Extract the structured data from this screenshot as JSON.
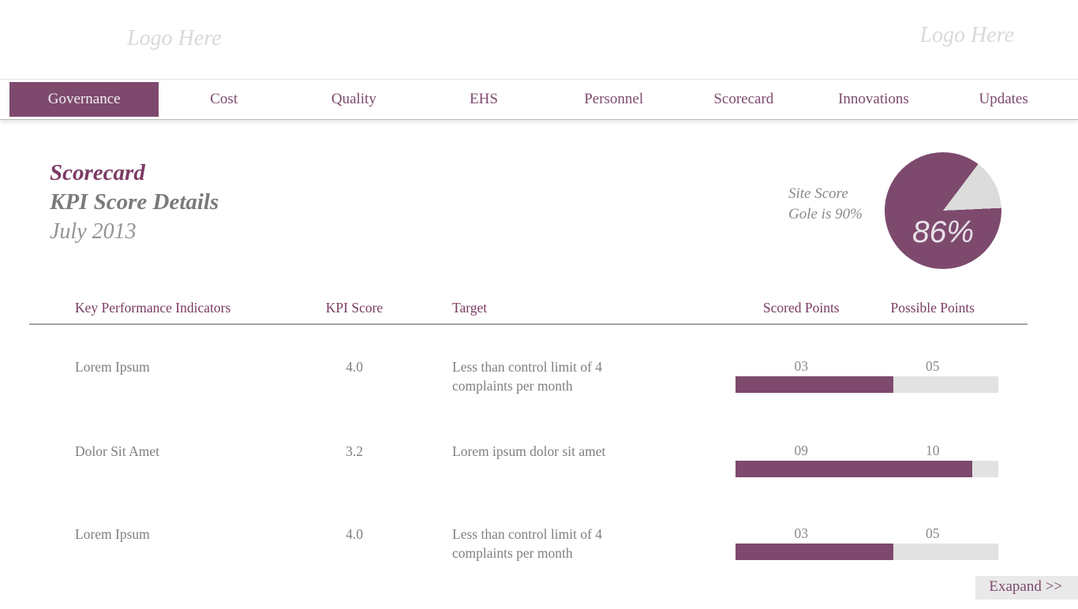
{
  "brand": {
    "logo_left": "Logo Here",
    "logo_right": "Logo Here"
  },
  "nav": {
    "items": [
      {
        "label": "Governance",
        "active": true
      },
      {
        "label": "Cost",
        "active": false
      },
      {
        "label": "Quality",
        "active": false
      },
      {
        "label": "EHS",
        "active": false
      },
      {
        "label": "Personnel",
        "active": false
      },
      {
        "label": "Scorecard",
        "active": false
      },
      {
        "label": "Innovations",
        "active": false
      },
      {
        "label": "Updates",
        "active": false
      }
    ]
  },
  "header": {
    "title": "Scorecard",
    "subtitle": "KPI Score Details",
    "period": "July 2013"
  },
  "site_score": {
    "caption_line1": "Site Score",
    "caption_line2": "Gole is 90%",
    "score_percent": 86,
    "score_label": "86%",
    "goal_percent": 90
  },
  "table": {
    "columns": [
      "Key Performance Indicators",
      "KPI Score",
      "Target",
      "Scored Points",
      "Possible Points"
    ],
    "rows": [
      {
        "kpi": "Lorem Ipsum",
        "kpi_score": "4.0",
        "target": "Less than control limit of 4 complaints per month",
        "scored_label": "03",
        "possible_label": "05",
        "scored": 3,
        "possible": 5
      },
      {
        "kpi": "Dolor Sit Amet",
        "kpi_score": "3.2",
        "target": "Lorem ipsum dolor sit amet",
        "scored_label": "09",
        "possible_label": "10",
        "scored": 9,
        "possible": 10
      },
      {
        "kpi": "Lorem Ipsum",
        "kpi_score": "4.0",
        "target": "Less than control limit of 4 complaints per month",
        "scored_label": "03",
        "possible_label": "05",
        "scored": 3,
        "possible": 5
      }
    ]
  },
  "footer": {
    "expand_label": "Exapand >>"
  },
  "colors": {
    "accent": "#7d4a6e",
    "title_purple": "#7b3b63",
    "gray_text": "#808080",
    "bar_track": "#e2e2e2",
    "pie_slice": "#dcdcdc",
    "expand_bg": "#e9e9e9",
    "logo_gray": "#d9d9d9",
    "divider_gray": "#a3a3a3"
  },
  "chart_data": [
    {
      "type": "pie",
      "title": "Site Score",
      "labels": [
        "Site Score",
        "Remaining"
      ],
      "values": [
        86,
        14
      ],
      "annotation": "86%",
      "note": "Gole is 90%",
      "slice_colors": [
        "#7d4a6e",
        "#dcdcdc"
      ],
      "gray_slice_start_deg": 37
    },
    {
      "type": "bar",
      "categories": [
        "Lorem Ipsum",
        "Dolor Sit Amet",
        "Lorem Ipsum"
      ],
      "series": [
        {
          "name": "Scored Points",
          "values": [
            3,
            9,
            3
          ]
        },
        {
          "name": "Possible Points",
          "values": [
            5,
            10,
            5
          ]
        }
      ],
      "orientation": "horizontal",
      "legend_position": "column-headers"
    }
  ]
}
